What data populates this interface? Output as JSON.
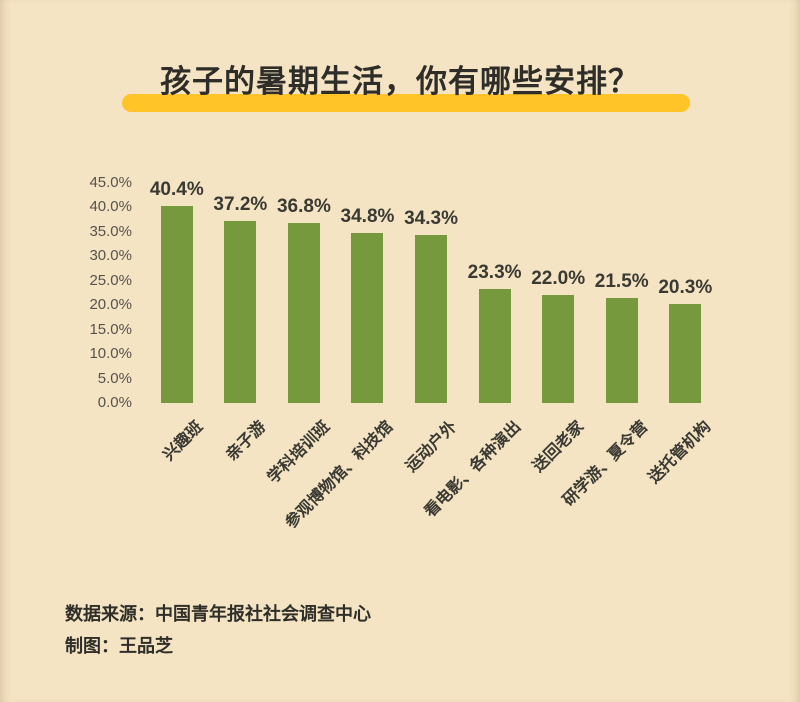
{
  "title": "孩子的暑期生活，你有哪些安排？",
  "footer": {
    "source": "数据来源：中国青年报社社会调查中心",
    "credit": "制图：王品芝"
  },
  "colors": {
    "background": "#F4E4C4",
    "bar": "#76993E",
    "title_highlight": "#FFC427",
    "value_label": "#3A3932",
    "tick_label": "#55534C",
    "footer_text": "#2F2E29"
  },
  "chart_data": {
    "type": "bar",
    "title": "孩子的暑期生活，你有哪些安排？",
    "categories": [
      "兴趣班",
      "亲子游",
      "学科培训班",
      "参观博物馆、科技馆",
      "运动户外",
      "看电影、各种演出",
      "送回老家",
      "研学游、夏令营",
      "送托管机构"
    ],
    "values": [
      40.4,
      37.2,
      36.8,
      34.8,
      34.3,
      23.3,
      22.0,
      21.5,
      20.3
    ],
    "data_labels": [
      "40.4%",
      "37.2%",
      "36.8%",
      "34.8%",
      "34.3%",
      "23.3%",
      "22.0%",
      "21.5%",
      "20.3%"
    ],
    "y_ticks": [
      "45.0%",
      "40.0%",
      "35.0%",
      "30.0%",
      "25.0%",
      "20.0%",
      "15.0%",
      "10.0%",
      "5.0%",
      "0.0%"
    ],
    "ylim": [
      0,
      45
    ],
    "xlabel": "",
    "ylabel": "",
    "grid": false,
    "legend": "none",
    "bar_color": "#76993E",
    "x_tick_rotation": 45
  }
}
